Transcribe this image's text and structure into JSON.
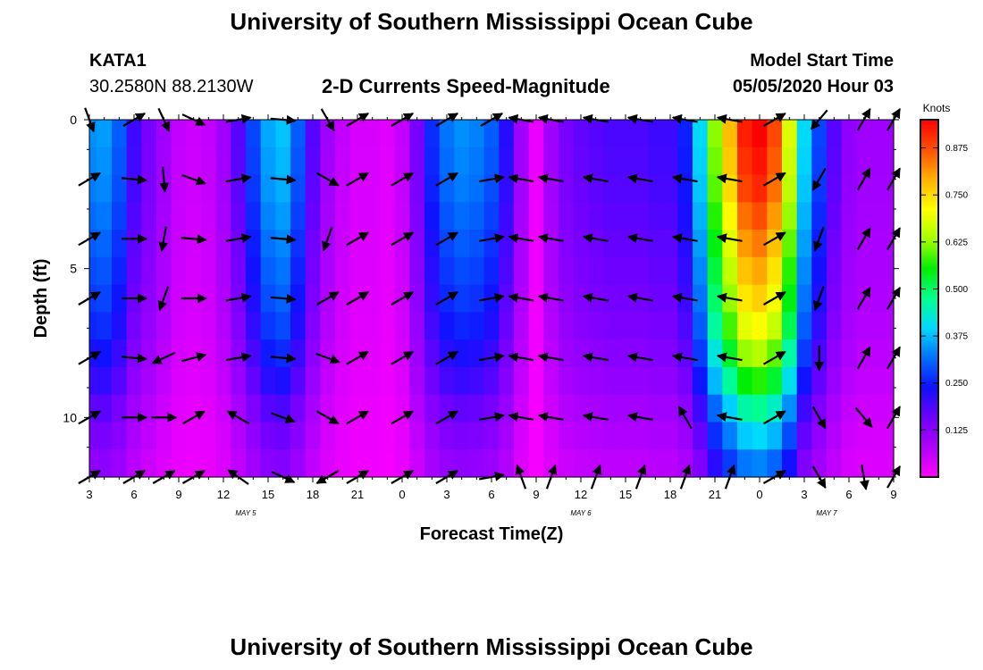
{
  "header": {
    "title": "University of Southern Mississippi Ocean Cube",
    "station_id": "KATA1",
    "station_coords": "30.2580N 88.2130W",
    "chart_title": "2-D Currents Speed-Magnitude",
    "start_label": "Model Start Time",
    "start_value": "05/05/2020 Hour 03"
  },
  "footer": {
    "title": "University of Southern Mississippi Ocean Cube"
  },
  "chart_data": {
    "type": "heatmap",
    "title": "2-D Currents Speed-Magnitude",
    "xlabel": "Forecast Time(Z)",
    "ylabel": "Depth (ft)",
    "x_tick_labels": [
      "3",
      "6",
      "9",
      "12",
      "15",
      "18",
      "21",
      "0",
      "3",
      "6",
      "9",
      "12",
      "15",
      "18",
      "21",
      "0",
      "3",
      "6",
      "9"
    ],
    "date_labels": [
      {
        "label": "MAY 5",
        "hour_index": 10.5
      },
      {
        "label": "MAY 6",
        "hour_index": 33
      },
      {
        "label": "MAY 7",
        "hour_index": 49.5
      }
    ],
    "x_start_hour": 3,
    "x_range_hours": [
      0,
      54
    ],
    "y_range_ft": [
      0,
      12
    ],
    "y_ticks": [
      0,
      5,
      10
    ],
    "colorbar": {
      "title": "Knots",
      "range": [
        0,
        0.95
      ],
      "tick_values": [
        0.125,
        0.25,
        0.375,
        0.5,
        0.625,
        0.75,
        0.875
      ],
      "tick_labels": [
        "0.125",
        "0.250",
        "0.375",
        "0.500",
        "0.625",
        "0.750",
        "0.875"
      ],
      "colors": [
        "#ff00ff",
        "#b000ff",
        "#7000ff",
        "#1010ff",
        "#0070ff",
        "#00d8ff",
        "#00ff90",
        "#00ee00",
        "#a8ff00",
        "#ffff00",
        "#ffb000",
        "#ff5000",
        "#ff0000"
      ]
    },
    "time_hours": [
      0,
      1,
      2,
      3,
      4,
      5,
      6,
      7,
      8,
      9,
      10,
      11,
      12,
      13,
      14,
      15,
      16,
      17,
      18,
      19,
      20,
      21,
      22,
      23,
      24,
      25,
      26,
      27,
      28,
      29,
      30,
      31,
      32,
      33,
      34,
      35,
      36,
      37,
      38,
      39,
      40,
      41,
      42,
      43,
      44,
      45,
      46,
      47,
      48,
      49,
      50,
      51,
      52,
      53,
      54
    ],
    "speed_surface": [
      0.34,
      0.35,
      0.3,
      0.2,
      0.15,
      0.1,
      0.06,
      0.05,
      0.06,
      0.1,
      0.18,
      0.28,
      0.36,
      0.38,
      0.3,
      0.18,
      0.1,
      0.06,
      0.04,
      0.04,
      0.03,
      0.06,
      0.15,
      0.26,
      0.32,
      0.34,
      0.33,
      0.3,
      0.22,
      0.1,
      0.02,
      0.1,
      0.15,
      0.17,
      0.18,
      0.19,
      0.19,
      0.19,
      0.2,
      0.2,
      0.25,
      0.4,
      0.62,
      0.78,
      0.92,
      0.95,
      0.88,
      0.68,
      0.4,
      0.28,
      0.18,
      0.12,
      0.1,
      0.1,
      0.1
    ],
    "speed_scale": [
      1.0,
      0.98,
      0.96,
      0.92,
      0.88,
      0.84,
      0.8,
      0.75,
      0.68,
      0.6,
      0.5,
      0.42,
      0.35
    ],
    "vectors": {
      "times": [
        0,
        3,
        5,
        7,
        10,
        13,
        16,
        18,
        21,
        24,
        27,
        29,
        31,
        34,
        37,
        40,
        43,
        46,
        49,
        52,
        54
      ],
      "depths": [
        0,
        2,
        4,
        6,
        8,
        10,
        12
      ],
      "note_units": "angle in compass degrees toward which current flows"
    }
  }
}
